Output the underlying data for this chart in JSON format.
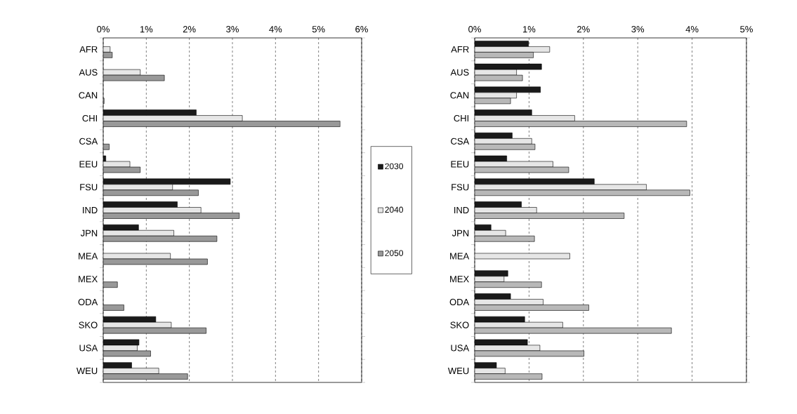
{
  "chart_data": [
    {
      "type": "bar",
      "orientation": "horizontal",
      "categories": [
        "AFR",
        "AUS",
        "CAN",
        "CHI",
        "CSA",
        "EEU",
        "FSU",
        "IND",
        "JPN",
        "MEA",
        "MEX",
        "ODA",
        "SKO",
        "USA",
        "WEU"
      ],
      "series": [
        {
          "name": "2030",
          "color": "#1a1a1a",
          "values": [
            null,
            null,
            null,
            2.16,
            null,
            0.06,
            2.95,
            1.72,
            0.82,
            null,
            null,
            null,
            1.22,
            0.83,
            0.66
          ]
        },
        {
          "name": "2040",
          "color": "#e6e6e6",
          "values": [
            0.16,
            0.86,
            null,
            3.23,
            null,
            0.62,
            1.61,
            2.27,
            1.64,
            1.56,
            null,
            null,
            1.58,
            0.79,
            1.29
          ]
        },
        {
          "name": "2050",
          "color": "#999999",
          "values": [
            0.21,
            1.42,
            0.02,
            5.5,
            0.14,
            0.86,
            2.21,
            3.16,
            2.64,
            2.42,
            0.33,
            0.48,
            2.39,
            1.1,
            1.96
          ]
        }
      ],
      "xlim": [
        0,
        6
      ],
      "xticks": [
        {
          "value": 0,
          "label": "0%"
        },
        {
          "value": 1,
          "label": "1%"
        },
        {
          "value": 2,
          "label": "2%"
        },
        {
          "value": 3,
          "label": "3%"
        },
        {
          "value": 4,
          "label": "4%"
        },
        {
          "value": 5,
          "label": "5%"
        },
        {
          "value": 6,
          "label": "6%"
        }
      ],
      "grid": "x",
      "legend": "right"
    },
    {
      "type": "bar",
      "orientation": "horizontal",
      "categories": [
        "AFR",
        "AUS",
        "CAN",
        "CHI",
        "CSA",
        "EEU",
        "FSU",
        "IND",
        "JPN",
        "MEA",
        "MEX",
        "ODA",
        "SKO",
        "USA",
        "WEU"
      ],
      "series": [
        {
          "color": "#1a1a1a",
          "values": [
            0.99,
            1.23,
            1.21,
            1.05,
            0.69,
            0.59,
            2.2,
            0.86,
            0.3,
            null,
            0.61,
            0.66,
            0.92,
            0.97,
            0.4
          ]
        },
        {
          "color": "#e6e6e6",
          "values": [
            1.38,
            0.77,
            0.77,
            1.84,
            1.05,
            1.44,
            3.16,
            1.14,
            0.57,
            1.75,
            0.54,
            1.26,
            1.62,
            1.2,
            0.56
          ]
        },
        {
          "color": "#b8b8b8",
          "values": [
            1.08,
            0.88,
            0.66,
            3.9,
            1.11,
            1.73,
            3.96,
            2.75,
            1.1,
            null,
            1.23,
            2.1,
            3.62,
            2.01,
            1.24
          ]
        }
      ],
      "xlim": [
        0,
        5
      ],
      "xticks": [
        {
          "value": 0,
          "label": "0%"
        },
        {
          "value": 1,
          "label": "1%"
        },
        {
          "value": 2,
          "label": "2%"
        },
        {
          "value": 3,
          "label": "3%"
        },
        {
          "value": 4,
          "label": "4%"
        },
        {
          "value": 5,
          "label": "5%"
        }
      ],
      "grid": "x"
    }
  ]
}
